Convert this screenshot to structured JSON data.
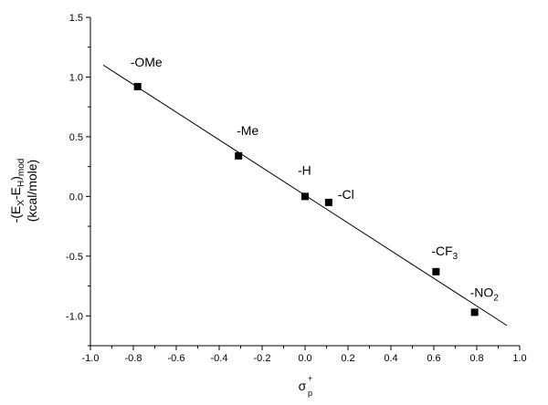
{
  "chart_data": {
    "type": "scatter",
    "xlabel_main": "σ",
    "xlabel_sup": "+",
    "xlabel_sub": "p",
    "ylabel_line1_parts": [
      "-(E",
      "X",
      "-E",
      "H",
      ")",
      "mod"
    ],
    "ylabel_line2": "(kcal/mole)",
    "xlim": [
      -1.0,
      1.0
    ],
    "ylim": [
      -1.25,
      1.5
    ],
    "xticks": [
      "-1.0",
      "-0.8",
      "-0.6",
      "-0.4",
      "-0.2",
      "0.0",
      "0.2",
      "0.4",
      "0.6",
      "0.8",
      "1.0"
    ],
    "yticks": [
      "1.5",
      "1.0",
      "0.5",
      "0.0",
      "-0.5",
      "-1.0"
    ],
    "grid": false,
    "series": [
      {
        "points": [
          {
            "x": -0.78,
            "y": 0.92,
            "label": "-OMe"
          },
          {
            "x": -0.31,
            "y": 0.34,
            "label": "-Me"
          },
          {
            "x": 0.0,
            "y": 0.0,
            "label": "-H"
          },
          {
            "x": 0.11,
            "y": -0.05,
            "label": "-Cl"
          },
          {
            "x": 0.61,
            "y": -0.63,
            "label": "-CF",
            "label_sub": "3"
          },
          {
            "x": 0.79,
            "y": -0.97,
            "label": "-NO",
            "label_sub": "2"
          }
        ]
      }
    ],
    "fit_line": {
      "x": [
        -0.94,
        0.94
      ],
      "y": [
        1.1,
        -1.08
      ]
    }
  }
}
